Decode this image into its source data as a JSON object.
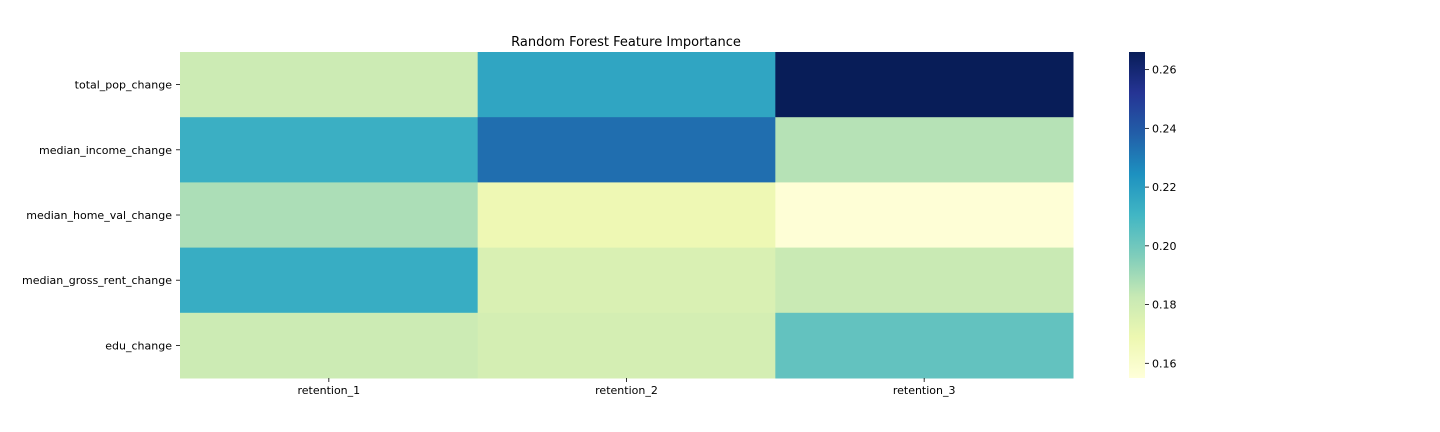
{
  "chart_data": {
    "type": "heatmap",
    "title": "Random Forest Feature Importance",
    "x_categories": [
      "retention_1",
      "retention_2",
      "retention_3"
    ],
    "y_categories": [
      "total_pop_change",
      "median_income_change",
      "median_home_val_change",
      "median_gross_rent_change",
      "edu_change"
    ],
    "values": [
      [
        0.181,
        0.217,
        0.266
      ],
      [
        0.213,
        0.234,
        0.186
      ],
      [
        0.188,
        0.168,
        0.156
      ],
      [
        0.214,
        0.176,
        0.182
      ],
      [
        0.181,
        0.178,
        0.203
      ]
    ],
    "colormap": "YlGnBu",
    "colorbar": {
      "range": [
        0.155,
        0.266
      ],
      "ticks": [
        0.16,
        0.18,
        0.2,
        0.22,
        0.24,
        0.26
      ],
      "tick_labels": [
        "0.16",
        "0.18",
        "0.20",
        "0.22",
        "0.24",
        "0.26"
      ]
    }
  }
}
